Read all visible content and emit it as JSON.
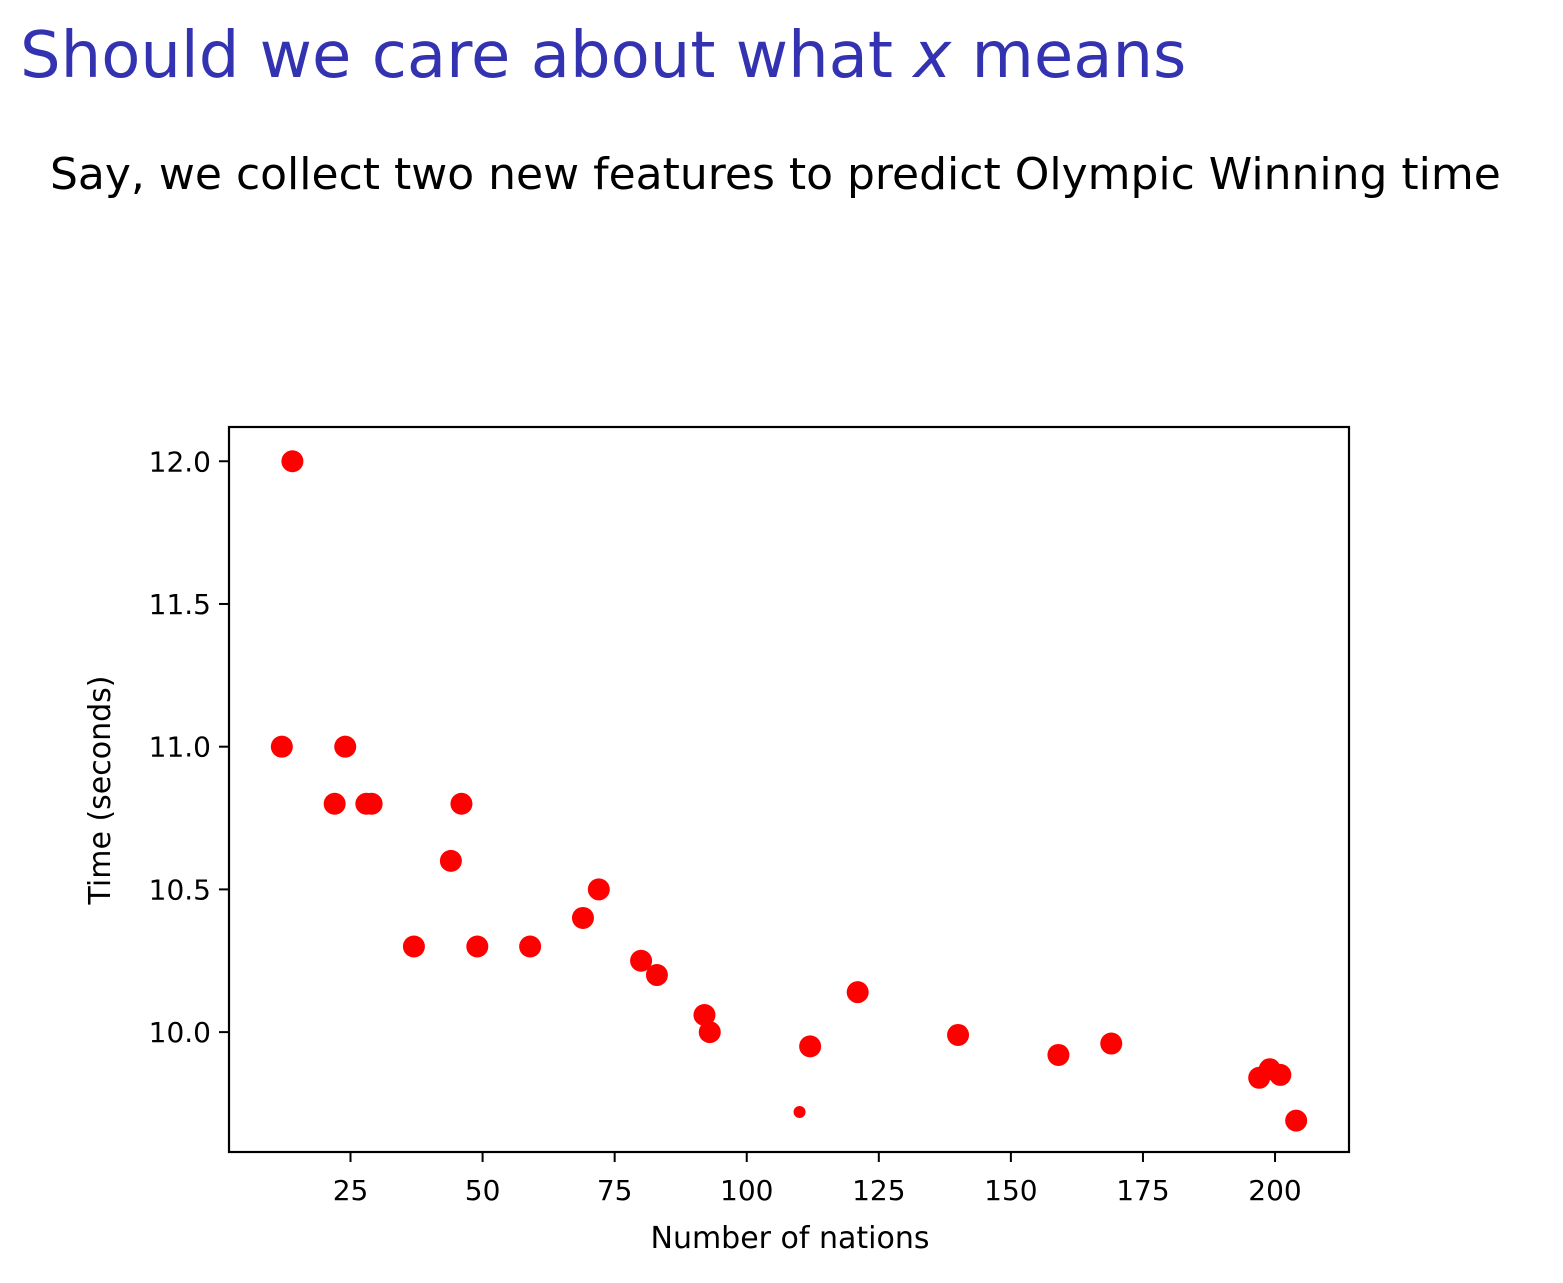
{
  "slide": {
    "title_pre": "Should we care about what ",
    "title_var": "x",
    "title_post": " means",
    "body": "Say, we collect two new features to predict Olympic Winning time"
  },
  "chart_data": {
    "type": "scatter",
    "title": "",
    "xlabel": "Number of nations",
    "ylabel": "Time (seconds)",
    "xlim": [
      2,
      214
    ],
    "ylim": [
      9.58,
      12.12
    ],
    "xticks": [
      25,
      50,
      75,
      100,
      125,
      150,
      175,
      200
    ],
    "xtick_labels": [
      "25",
      "50",
      "75",
      "100",
      "125",
      "150",
      "175",
      "200"
    ],
    "yticks": [
      10.0,
      10.5,
      11.0,
      11.5,
      12.0
    ],
    "ytick_labels": [
      "10.0",
      "10.5",
      "11.0",
      "11.5",
      "12.0"
    ],
    "grid": false,
    "marker_color": "#ff0000",
    "points": [
      {
        "x": 14,
        "y": 12.0
      },
      {
        "x": 12,
        "y": 11.0
      },
      {
        "x": 24,
        "y": 11.0
      },
      {
        "x": 22,
        "y": 10.8
      },
      {
        "x": 28,
        "y": 10.8
      },
      {
        "x": 29,
        "y": 10.8
      },
      {
        "x": 46,
        "y": 10.8
      },
      {
        "x": 44,
        "y": 10.6
      },
      {
        "x": 37,
        "y": 10.3
      },
      {
        "x": 49,
        "y": 10.3
      },
      {
        "x": 59,
        "y": 10.3
      },
      {
        "x": 72,
        "y": 10.5
      },
      {
        "x": 69,
        "y": 10.4
      },
      {
        "x": 80,
        "y": 10.25
      },
      {
        "x": 83,
        "y": 10.2
      },
      {
        "x": 92,
        "y": 10.06
      },
      {
        "x": 93,
        "y": 10.0
      },
      {
        "x": 121,
        "y": 10.14
      },
      {
        "x": 112,
        "y": 9.95
      },
      {
        "x": 110,
        "y": 9.72,
        "size": "small"
      },
      {
        "x": 140,
        "y": 9.99
      },
      {
        "x": 159,
        "y": 9.92
      },
      {
        "x": 169,
        "y": 9.96
      },
      {
        "x": 197,
        "y": 9.84
      },
      {
        "x": 199,
        "y": 9.87
      },
      {
        "x": 201,
        "y": 9.85
      },
      {
        "x": 204,
        "y": 9.69
      }
    ]
  }
}
